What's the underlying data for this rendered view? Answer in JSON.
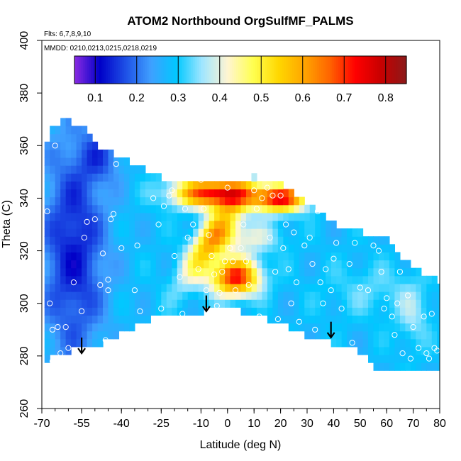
{
  "chart_data": {
    "type": "heatmap",
    "title": "ATOM2 Northbound OrgSulfMF_PALMS",
    "annotations": [
      "Flts: 6,7,8,9,10",
      "MMDD: 0210,0213,0215,0218,0219"
    ],
    "xlabel": "Latitude (deg N)",
    "ylabel": "Theta (C)",
    "xlim": [
      -70,
      80
    ],
    "ylim": [
      260,
      400
    ],
    "x_ticks": [
      -70,
      -55,
      -40,
      -25,
      -10,
      0,
      10,
      20,
      30,
      40,
      50,
      60,
      70,
      80
    ],
    "y_ticks": [
      260,
      280,
      300,
      320,
      340,
      360,
      380,
      400
    ],
    "colorbar": {
      "range": [
        0.05,
        0.85
      ],
      "ticks": [
        0.1,
        0.2,
        0.3,
        0.4,
        0.5,
        0.6,
        0.7,
        0.8
      ],
      "colors": [
        "#8a2be2",
        "#0000c8",
        "#1e50e6",
        "#3fa0ff",
        "#00c8ff",
        "#a0e6ff",
        "#fff5d2",
        "#ffff50",
        "#ffd700",
        "#ffa500",
        "#ff6400",
        "#ff0000",
        "#c80000",
        "#8b1a1a"
      ]
    },
    "field_regions": [
      {
        "name": "background",
        "value": 0.28
      },
      {
        "name": "southern-high-latitude-low",
        "lat": [
          -70,
          -35
        ],
        "theta": [
          285,
          365
        ],
        "value": 0.13
      },
      {
        "name": "southern-upper-low",
        "lat": [
          -58,
          -40
        ],
        "theta": [
          345,
          368
        ],
        "value": 0.16
      },
      {
        "name": "tropical-upper-max",
        "lat": [
          -25,
          30
        ],
        "theta": [
          335,
          350
        ],
        "value": 0.74
      },
      {
        "name": "tropical-mid-max",
        "lat": [
          -10,
          15
        ],
        "theta": [
          300,
          318
        ],
        "value": 0.72
      },
      {
        "name": "tropical-diagonal-band",
        "lat": [
          -20,
          15
        ],
        "theta": [
          305,
          345
        ],
        "value": 0.58
      },
      {
        "name": "northern-midlatitude",
        "lat": [
          40,
          80
        ],
        "theta": [
          280,
          330
        ],
        "value": 0.32
      }
    ],
    "sample_points": [
      [
        -68,
        335
      ],
      [
        -67,
        300
      ],
      [
        -66,
        290
      ],
      [
        -66,
        278
      ],
      [
        -65,
        360
      ],
      [
        -64,
        291
      ],
      [
        -63,
        281
      ],
      [
        -61,
        291
      ],
      [
        -60,
        283
      ],
      [
        -58,
        308
      ],
      [
        -55,
        297
      ],
      [
        -54,
        325
      ],
      [
        -53,
        331
      ],
      [
        -52,
        273
      ],
      [
        -50,
        332
      ],
      [
        -48,
        307
      ],
      [
        -47,
        319
      ],
      [
        -46,
        286
      ],
      [
        -45,
        305
      ],
      [
        -45,
        309
      ],
      [
        -44,
        332
      ],
      [
        -43,
        334
      ],
      [
        -42,
        353
      ],
      [
        -40,
        321
      ],
      [
        -35,
        305
      ],
      [
        -34,
        322
      ],
      [
        -33,
        297
      ],
      [
        -28,
        340
      ],
      [
        -26,
        330
      ],
      [
        -25,
        298
      ],
      [
        -24,
        337
      ],
      [
        -22,
        341
      ],
      [
        -21,
        343
      ],
      [
        -20,
        318
      ],
      [
        -18,
        310
      ],
      [
        -17,
        296
      ],
      [
        -16,
        336
      ],
      [
        -15,
        325
      ],
      [
        -13,
        330
      ],
      [
        -11,
        313
      ],
      [
        -10,
        347
      ],
      [
        -9,
        336
      ],
      [
        -8,
        305
      ],
      [
        -7,
        326
      ],
      [
        -6,
        318
      ],
      [
        -5,
        311
      ],
      [
        -4,
        299
      ],
      [
        -3,
        304
      ],
      [
        -2,
        312
      ],
      [
        -1,
        316
      ],
      [
        0,
        344
      ],
      [
        1,
        321
      ],
      [
        2,
        316
      ],
      [
        3,
        305
      ],
      [
        5,
        321
      ],
      [
        6,
        330
      ],
      [
        7,
        316
      ],
      [
        8,
        307
      ],
      [
        10,
        343
      ],
      [
        11,
        336
      ],
      [
        12,
        295
      ],
      [
        13,
        340
      ],
      [
        15,
        344
      ],
      [
        16,
        325
      ],
      [
        17,
        341
      ],
      [
        18,
        312
      ],
      [
        19,
        294
      ],
      [
        20,
        341
      ],
      [
        21,
        321
      ],
      [
        22,
        330
      ],
      [
        23,
        313
      ],
      [
        24,
        300
      ],
      [
        25,
        327
      ],
      [
        26,
        308
      ],
      [
        27,
        293
      ],
      [
        29,
        322
      ],
      [
        31,
        325
      ],
      [
        32,
        315
      ],
      [
        33,
        290
      ],
      [
        34,
        335
      ],
      [
        35,
        308
      ],
      [
        36,
        300
      ],
      [
        37,
        313
      ],
      [
        39,
        305
      ],
      [
        40,
        317
      ],
      [
        41,
        323
      ],
      [
        43,
        298
      ],
      [
        46,
        315
      ],
      [
        47,
        285
      ],
      [
        48,
        323
      ],
      [
        50,
        306
      ],
      [
        51,
        330
      ],
      [
        53,
        305
      ],
      [
        55,
        322
      ],
      [
        57,
        320
      ],
      [
        58,
        312
      ],
      [
        59,
        298
      ],
      [
        60,
        302
      ],
      [
        62,
        295
      ],
      [
        63,
        288
      ],
      [
        64,
        300
      ],
      [
        65,
        312
      ],
      [
        66,
        281
      ],
      [
        67,
        322
      ],
      [
        68,
        303
      ],
      [
        69,
        279
      ],
      [
        70,
        291
      ],
      [
        72,
        283
      ],
      [
        73,
        322
      ],
      [
        74,
        295
      ],
      [
        75,
        281
      ],
      [
        76,
        279
      ],
      [
        77,
        296
      ],
      [
        78,
        283
      ],
      [
        79,
        282
      ],
      [
        80,
        323
      ]
    ],
    "arrows": [
      {
        "lat": -55,
        "theta_top": 287,
        "theta_tip": 281
      },
      {
        "lat": -8,
        "theta_top": 303,
        "theta_tip": 297
      },
      {
        "lat": 39,
        "theta_top": 293,
        "theta_tip": 287
      }
    ],
    "grid": false,
    "legend": "colorbar-top"
  }
}
